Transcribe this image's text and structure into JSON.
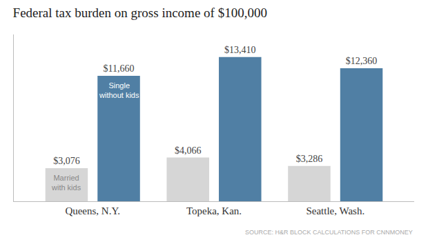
{
  "chart_data": {
    "type": "bar",
    "title": "Federal tax burden on gross income of $100,000",
    "categories": [
      "Queens, N.Y.",
      "Topeka, Kan.",
      "Seattle, Wash."
    ],
    "series": [
      {
        "name": "Married\nwith kids",
        "color": "#d6d6d6",
        "values": [
          3076,
          4066,
          3286
        ],
        "value_labels": [
          "$3,076",
          "$4,066",
          "$3,286"
        ]
      },
      {
        "name": "Single\nwithout kids",
        "color": "#507fa4",
        "values": [
          11660,
          13410,
          12360
        ],
        "value_labels": [
          "$11,660",
          "$13,410",
          "$12,360"
        ]
      }
    ],
    "ylim": [
      0,
      15500
    ],
    "grid": false,
    "data_labels": true,
    "tick_labels": "x",
    "annotations": [
      "SOURCE: H&R BLOCK CALCULATIONS FOR CNNMONEY"
    ]
  }
}
